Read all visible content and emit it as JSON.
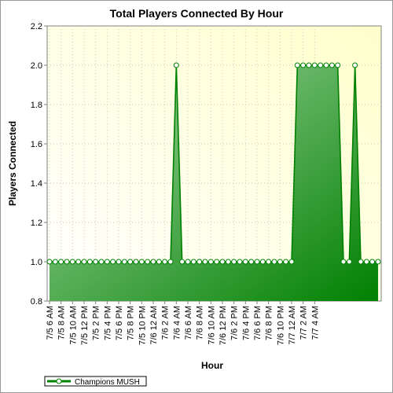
{
  "chart_data": {
    "type": "area",
    "title": "Total Players Connected By Hour",
    "xlabel": "Hour",
    "ylabel": "Players Connected",
    "ylim": [
      0.8,
      2.2
    ],
    "yticks": [
      "0.8",
      "1.0",
      "1.2",
      "1.4",
      "1.6",
      "1.8",
      "2.0",
      "2.2"
    ],
    "grid": true,
    "legend_position": "bottom-left",
    "xtick_labels": [
      "7/5 6 AM",
      "7/5 8 AM",
      "7/5 10 AM",
      "7/5 12 PM",
      "7/5 2 PM",
      "7/5 4 PM",
      "7/5 6 PM",
      "7/5 8 PM",
      "7/5 10 PM",
      "7/6 12 AM",
      "7/6 2 AM",
      "7/6 4 AM",
      "7/6 6 AM",
      "7/6 8 AM",
      "7/6 10 AM",
      "7/6 12 PM",
      "7/6 2 PM",
      "7/6 4 PM",
      "7/6 6 PM",
      "7/6 8 PM",
      "7/6 10 PM",
      "7/7 12 AM",
      "7/7 2 AM",
      "7/7 4 AM"
    ],
    "series": [
      {
        "name": "Champions MUSH",
        "color": "#008000",
        "values": [
          1,
          1,
          1,
          1,
          1,
          1,
          1,
          1,
          1,
          1,
          1,
          1,
          1,
          1,
          1,
          1,
          1,
          1,
          1,
          1,
          1,
          1,
          2,
          1,
          1,
          1,
          1,
          1,
          1,
          1,
          1,
          1,
          1,
          1,
          1,
          1,
          1,
          1,
          1,
          1,
          1,
          1,
          1,
          2,
          2,
          2,
          2,
          2,
          2,
          2,
          2,
          1,
          1,
          2,
          1,
          1,
          1,
          1
        ]
      }
    ]
  }
}
